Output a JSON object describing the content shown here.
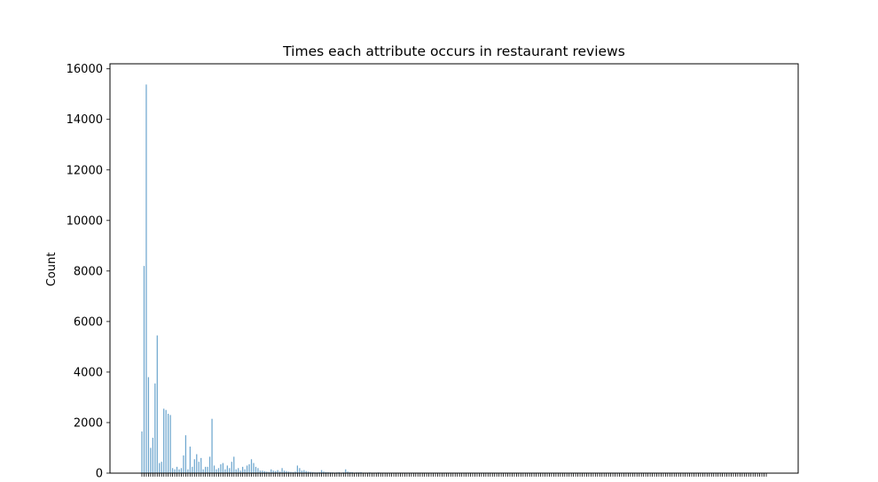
{
  "chart_data": {
    "type": "bar",
    "title": "Times each attribute occurs in restaurant reviews",
    "xlabel": "",
    "ylabel": "Count",
    "ylim": [
      0,
      16200
    ],
    "yticks": [
      0,
      2000,
      4000,
      6000,
      8000,
      10000,
      12000,
      14000,
      16000
    ],
    "grid": false,
    "legend": "none",
    "bar_color": "#1f77b4",
    "n_categories": 286,
    "values": [
      1650,
      8200,
      15380,
      3800,
      1000,
      1400,
      3550,
      5450,
      400,
      450,
      2550,
      2500,
      2350,
      2300,
      200,
      150,
      250,
      150,
      200,
      700,
      1500,
      150,
      1050,
      250,
      550,
      750,
      450,
      600,
      150,
      250,
      250,
      650,
      2150,
      300,
      150,
      200,
      350,
      400,
      150,
      300,
      200,
      450,
      650,
      150,
      200,
      100,
      250,
      150,
      300,
      350,
      550,
      400,
      250,
      200,
      100,
      100,
      80,
      60,
      50,
      150,
      100,
      80,
      120,
      60,
      200,
      100,
      80,
      60,
      50,
      40,
      60,
      300,
      200,
      100,
      120,
      80,
      60,
      50,
      40,
      30,
      30,
      40,
      120,
      60,
      40,
      40,
      30,
      30,
      20,
      30,
      40,
      20,
      30,
      150,
      60,
      40,
      40,
      20,
      30,
      30,
      40,
      20,
      20,
      20,
      30,
      20,
      20,
      20,
      30,
      20,
      20,
      20,
      20,
      20,
      20,
      20,
      20,
      20,
      20,
      20,
      20,
      20,
      20,
      20,
      20,
      20,
      20,
      20,
      20,
      20,
      20,
      20,
      20,
      20,
      20,
      20,
      20,
      20,
      20,
      20,
      20,
      20,
      20,
      20,
      20,
      20,
      20,
      20,
      20,
      20,
      20,
      20,
      20,
      20,
      20,
      20,
      20,
      20,
      20,
      20,
      20,
      20,
      20,
      20,
      20,
      20,
      20,
      20,
      20,
      20,
      20,
      20,
      20,
      20,
      20,
      20,
      20,
      20,
      20,
      20,
      20,
      20,
      20,
      20,
      20,
      20,
      20,
      20,
      20,
      20,
      20,
      20,
      20,
      20,
      20,
      20,
      20,
      20,
      20,
      20,
      20,
      20,
      20,
      20,
      20,
      20,
      20,
      20,
      20,
      20,
      20,
      20,
      20,
      20,
      20,
      20,
      20,
      20,
      20,
      20,
      20,
      20,
      20,
      20,
      20,
      20,
      20,
      20,
      20,
      20,
      20,
      20,
      20,
      20,
      20,
      20,
      20,
      20,
      20,
      20,
      20,
      20,
      20,
      20,
      20,
      20,
      20,
      20,
      20,
      20,
      20,
      20,
      20,
      20,
      20,
      20,
      20,
      20,
      20,
      20,
      20,
      20,
      20,
      20,
      20,
      20,
      20,
      20,
      20,
      20,
      20,
      20,
      20,
      20,
      20,
      20,
      20,
      20,
      20,
      20,
      20
    ]
  }
}
